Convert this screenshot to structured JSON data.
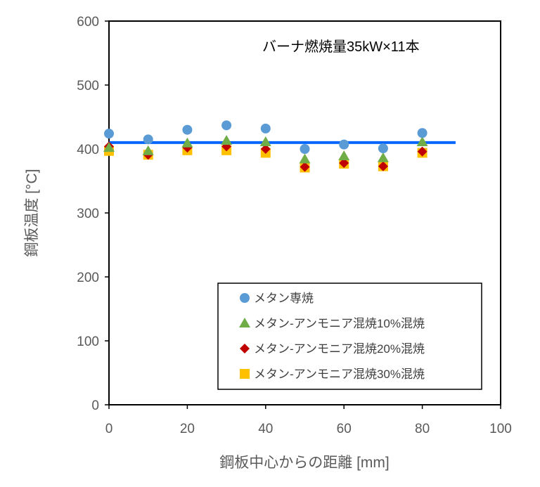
{
  "chart_data": {
    "type": "scatter",
    "title": "バーナ燃焼量35kW×11本",
    "xlabel": "鋼板中心からの距離 [mm]",
    "ylabel": "鋼板温度 [°C]",
    "xlim": [
      0,
      100
    ],
    "ylim": [
      0,
      600
    ],
    "xticks": [
      "0",
      "20",
      "40",
      "60",
      "80",
      "100"
    ],
    "yticks": [
      "0",
      "100",
      "200",
      "300",
      "400",
      "500",
      "600"
    ],
    "grid": false,
    "legend_placement": "bottom-right",
    "x": [
      0,
      10,
      20,
      30,
      40,
      50,
      60,
      70,
      80
    ],
    "series": [
      {
        "name": "メタン専焼",
        "marker": "circle",
        "color": "#5B9BD5",
        "values": [
          424,
          415,
          430,
          437,
          432,
          400,
          407,
          401,
          425
        ]
      },
      {
        "name": "メタン-アンモニア混焼10%混焼",
        "marker": "triangle",
        "color": "#70AD47",
        "values": [
          402,
          397,
          409,
          413,
          411,
          384,
          389,
          386,
          411
        ]
      },
      {
        "name": "メタン-アンモニア混焼20%混焼",
        "marker": "diamond",
        "color": "#C00000",
        "values": [
          404,
          391,
          402,
          404,
          400,
          372,
          378,
          373,
          396
        ]
      },
      {
        "name": "メタン-アンモニア混焼30%混焼",
        "marker": "square",
        "color": "#FFC000",
        "values": [
          397,
          391,
          398,
          398,
          394,
          371,
          377,
          373,
          394
        ]
      }
    ],
    "reference_line": {
      "color": "#0066FF",
      "y": 410,
      "x": [
        0,
        88.5
      ]
    }
  }
}
